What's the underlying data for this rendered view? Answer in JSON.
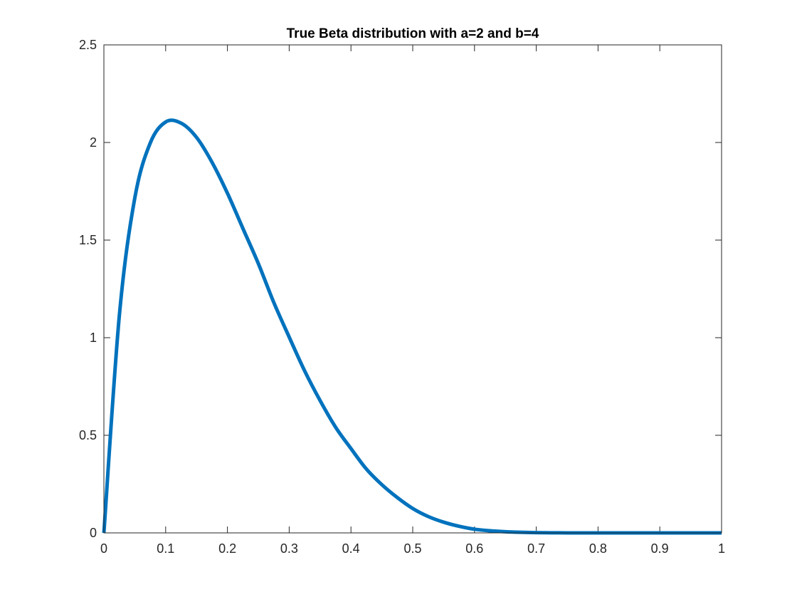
{
  "chart_data": {
    "type": "line",
    "title": "True Beta distribution with a=2 and b=4",
    "xlabel": "",
    "ylabel": "",
    "xlim": [
      0,
      1
    ],
    "ylim": [
      0,
      2.5
    ],
    "x_ticks": [
      0,
      0.1,
      0.2,
      0.3,
      0.4,
      0.5,
      0.6,
      0.7,
      0.8,
      0.9,
      1
    ],
    "x_tick_labels": [
      "0",
      "0.1",
      "0.2",
      "0.3",
      "0.4",
      "0.5",
      "0.6",
      "0.7",
      "0.8",
      "0.9",
      "1"
    ],
    "y_ticks": [
      0,
      0.5,
      1,
      1.5,
      2,
      2.5
    ],
    "y_tick_labels": [
      "0",
      "0.5",
      "1",
      "1.5",
      "2",
      "2.5"
    ],
    "grid": false,
    "box": true,
    "series": [
      {
        "color": "#0072BD",
        "x": [
          0,
          0.025,
          0.05,
          0.075,
          0.1,
          0.125,
          0.15,
          0.175,
          0.2,
          0.225,
          0.25,
          0.275,
          0.3,
          0.325,
          0.35,
          0.375,
          0.4,
          0.425,
          0.45,
          0.475,
          0.5,
          0.525,
          0.55,
          0.575,
          0.6,
          0.625,
          0.65,
          0.675,
          0.7,
          0.725,
          0.75,
          0.775,
          0.8,
          0.825,
          0.85,
          0.875,
          0.9,
          0.925,
          0.95,
          0.975,
          1
        ],
        "y": [
          0,
          1.113,
          1.715,
          1.997,
          2.105,
          2.099,
          2.026,
          1.899,
          1.74,
          1.56,
          1.38,
          1.181,
          1.003,
          0.83,
          0.678,
          0.542,
          0.432,
          0.327,
          0.247,
          0.181,
          0.125,
          0.084,
          0.055,
          0.034,
          0.019,
          0.011,
          0.006,
          0.003,
          0.0013,
          0.0005,
          0.0002,
          6e-05,
          2e-05,
          0,
          0,
          0,
          0,
          0,
          0,
          0,
          0
        ]
      }
    ]
  }
}
